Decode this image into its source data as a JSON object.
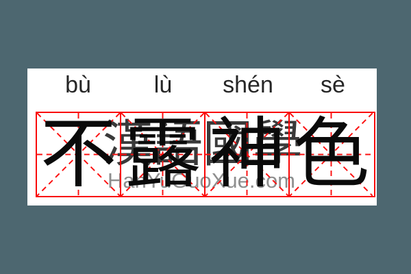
{
  "page": {
    "background": "#4d6770",
    "card_background": "#ffffff"
  },
  "idiom": {
    "name": "不露神色",
    "characters": [
      {
        "char": "不",
        "pinyin": "bù"
      },
      {
        "char": "露",
        "pinyin": "lù"
      },
      {
        "char": "神",
        "pinyin": "shén"
      },
      {
        "char": "色",
        "pinyin": "sè"
      }
    ]
  },
  "watermark": {
    "cjk": "漢語國學",
    "site": "HanYuGuoXue.com"
  },
  "colors": {
    "grid_red": "#f90505",
    "grid_dash_red": "#fb1111",
    "char_black": "#0a0a0a",
    "pinyin_dark": "#262626",
    "watermark_cjk": "#3a3a3a",
    "watermark_site": "#8e8e8e"
  }
}
